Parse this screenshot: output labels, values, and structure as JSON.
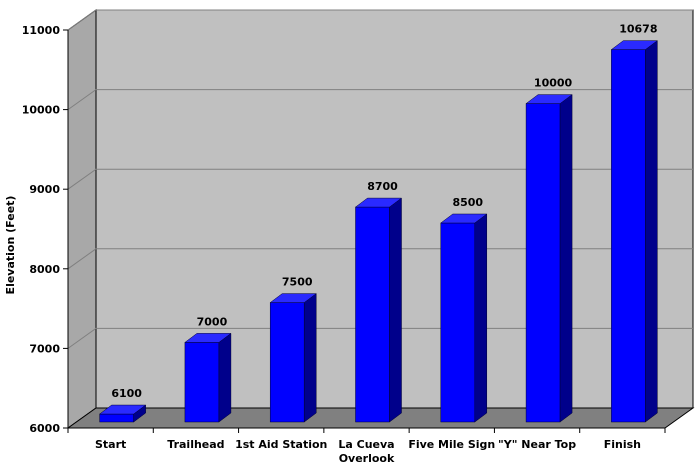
{
  "chart_data": {
    "type": "bar",
    "title": "",
    "xlabel": "",
    "ylabel": "Elevation (Feet)",
    "categories": [
      "Start",
      "Trailhead",
      "1st Aid Station",
      "La Cueva Overlook",
      "Five Mile Sign",
      "\"Y\" Near Top",
      "Finish"
    ],
    "category_lines": [
      [
        "Start"
      ],
      [
        "Trailhead"
      ],
      [
        "1st Aid Station"
      ],
      [
        "La Cueva",
        "Overlook"
      ],
      [
        "Five Mile Sign"
      ],
      [
        "\"Y\" Near Top"
      ],
      [
        "Finish"
      ]
    ],
    "values": [
      6100,
      7000,
      7500,
      8700,
      8500,
      10000,
      10678
    ],
    "ylim": [
      6000,
      11000
    ],
    "yticks": [
      6000,
      7000,
      8000,
      9000,
      10000,
      11000
    ],
    "grid": true,
    "legend": "none",
    "style": "3d",
    "colors": {
      "bar_front": "#0000ff",
      "bar_side": "#00008b",
      "bar_top": "#2a2aff",
      "wall": "#c0c0c0",
      "floor": "#808080",
      "grid": "#808080"
    }
  }
}
